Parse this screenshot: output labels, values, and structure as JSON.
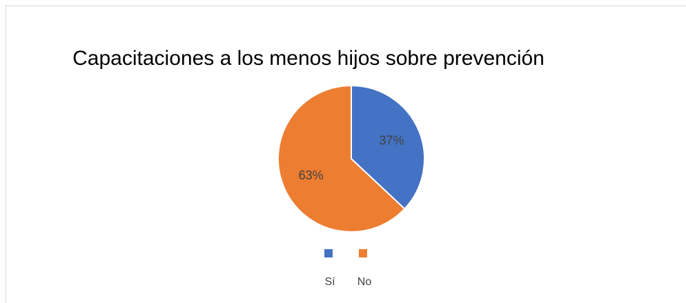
{
  "chart_data": {
    "type": "pie",
    "title": "Capacitaciones a los menos hijos sobre prevención",
    "categories": [
      "Sí",
      "No"
    ],
    "values": [
      37,
      63
    ],
    "value_labels": [
      "37%",
      "63%"
    ],
    "colors": [
      "#4472c4",
      "#ed7d31"
    ],
    "legend": "bottom"
  }
}
